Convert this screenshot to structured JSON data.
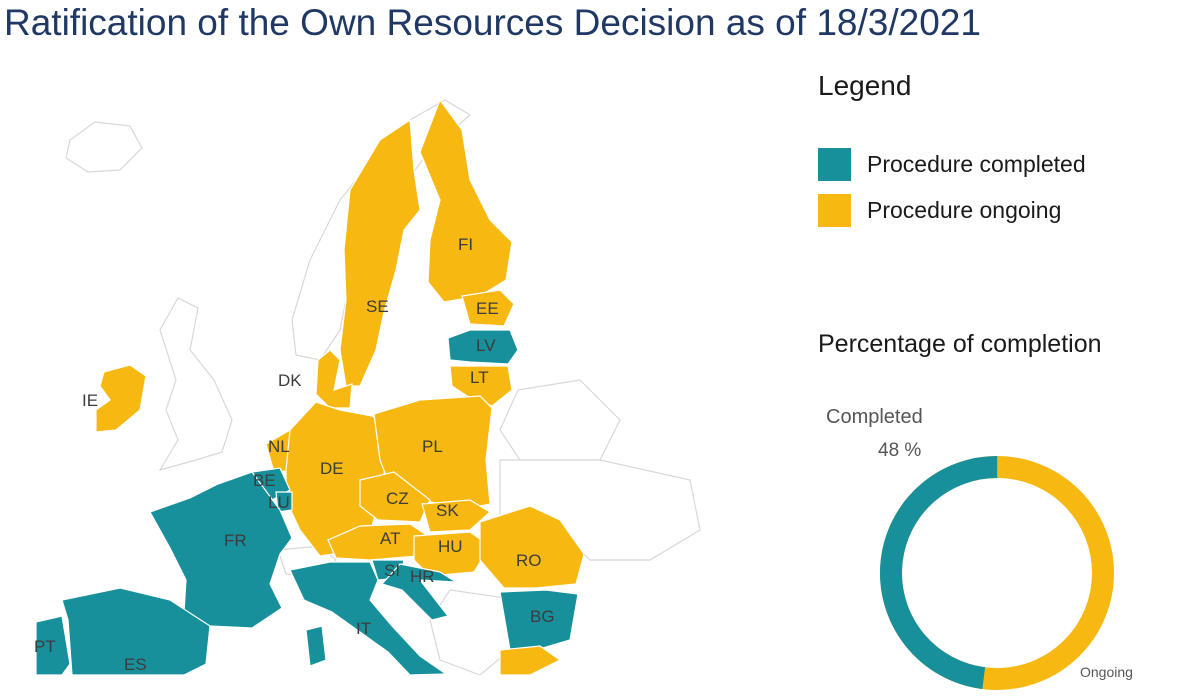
{
  "title": "Ratification of the Own Resources Decision as of 18/3/2021",
  "colors": {
    "completed": "#17909b",
    "ongoing": "#f7b811",
    "non_eu_fill": "#ffffff",
    "border": "#d8d8d8"
  },
  "legend": {
    "title": "Legend",
    "items": [
      {
        "label": "Procedure completed",
        "color": "#17909b"
      },
      {
        "label": "Procedure ongoing",
        "color": "#f7b811"
      }
    ]
  },
  "percentage": {
    "title": "Percentage of completion",
    "completed_label": "Completed",
    "completed_value": "48 %",
    "ongoing_label": "Ongoing",
    "completed_fraction": 0.48
  },
  "countries": [
    {
      "code": "IE",
      "status": "ongoing"
    },
    {
      "code": "SE",
      "status": "ongoing"
    },
    {
      "code": "FI",
      "status": "ongoing"
    },
    {
      "code": "EE",
      "status": "ongoing"
    },
    {
      "code": "LV",
      "status": "completed"
    },
    {
      "code": "LT",
      "status": "ongoing"
    },
    {
      "code": "DK",
      "status": "ongoing"
    },
    {
      "code": "NL",
      "status": "ongoing"
    },
    {
      "code": "BE",
      "status": "completed"
    },
    {
      "code": "LU",
      "status": "completed"
    },
    {
      "code": "DE",
      "status": "ongoing"
    },
    {
      "code": "PL",
      "status": "ongoing"
    },
    {
      "code": "CZ",
      "status": "ongoing"
    },
    {
      "code": "SK",
      "status": "ongoing"
    },
    {
      "code": "AT",
      "status": "ongoing"
    },
    {
      "code": "HU",
      "status": "ongoing"
    },
    {
      "code": "RO",
      "status": "ongoing"
    },
    {
      "code": "FR",
      "status": "completed"
    },
    {
      "code": "SI",
      "status": "completed"
    },
    {
      "code": "HR",
      "status": "completed"
    },
    {
      "code": "IT",
      "status": "completed"
    },
    {
      "code": "BG",
      "status": "completed"
    },
    {
      "code": "PT",
      "status": "completed"
    },
    {
      "code": "ES",
      "status": "completed"
    }
  ]
}
